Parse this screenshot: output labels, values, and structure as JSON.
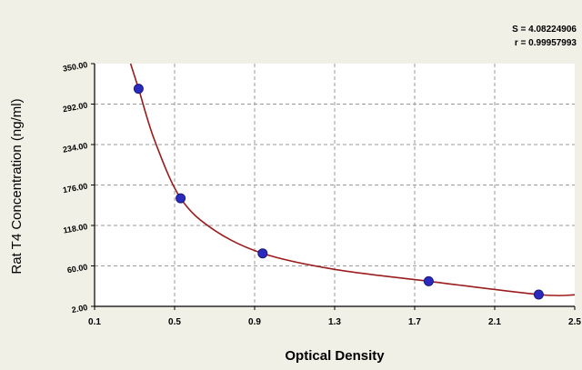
{
  "chart_data": {
    "type": "scatter",
    "title": "",
    "xlabel": "Optical Density",
    "ylabel": "Rat T4 Concentration (ng/ml)",
    "xlim": [
      0.1,
      2.5
    ],
    "ylim": [
      2.0,
      350.0
    ],
    "x_ticks": [
      "0.1",
      "0.5",
      "0.9",
      "1.3",
      "1.7",
      "2.1",
      "2.5"
    ],
    "y_ticks": [
      "2.00",
      "60.00",
      "118.00",
      "176.00",
      "234.00",
      "292.00",
      "350.00"
    ],
    "grid": true,
    "series": [
      {
        "points": [
          {
            "x": 0.32,
            "y": 314.0
          },
          {
            "x": 0.53,
            "y": 157.0
          },
          {
            "x": 0.94,
            "y": 78.0
          },
          {
            "x": 1.77,
            "y": 38.0
          },
          {
            "x": 2.32,
            "y": 19.0
          }
        ]
      }
    ],
    "fit_curve": {
      "type": "logistic",
      "samples": [
        {
          "x": 0.28,
          "y": 350.0
        },
        {
          "x": 0.32,
          "y": 314.0
        },
        {
          "x": 0.4,
          "y": 240.0
        },
        {
          "x": 0.53,
          "y": 157.0
        },
        {
          "x": 0.7,
          "y": 111.0
        },
        {
          "x": 0.94,
          "y": 78.0
        },
        {
          "x": 1.3,
          "y": 55.0
        },
        {
          "x": 1.77,
          "y": 38.0
        },
        {
          "x": 2.32,
          "y": 19.0
        },
        {
          "x": 2.5,
          "y": 18.5
        }
      ]
    },
    "stats": {
      "s_text": "S = 4.08224906",
      "r_text": "r = 0.99957993"
    }
  },
  "colors": {
    "background": "#f1f0e6",
    "plot_background": "#ffffff",
    "grid": "#9a9a9a",
    "axis": "#000000",
    "curve": "#9b1c1c",
    "point": "#2a2abf"
  }
}
